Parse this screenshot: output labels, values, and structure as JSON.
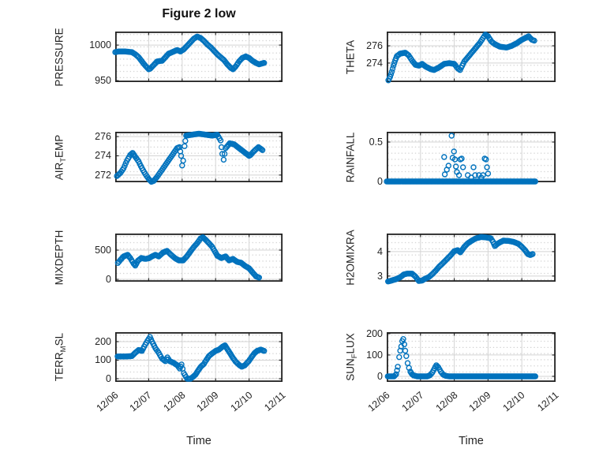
{
  "figure": {
    "title": "Figure 2 low",
    "x_label": "Time",
    "accent_color": "#0072BD",
    "axis_color": "#212121",
    "grid_color": "#d4d4d4",
    "minor_dot_color": "#c2c2c2"
  },
  "x_axis": {
    "tick_labels": [
      "12/06",
      "12/07",
      "12/08",
      "12/09",
      "12/10",
      "12/11"
    ],
    "range_days": [
      0,
      5
    ]
  },
  "chart_data": [
    {
      "name": "PRESSURE",
      "type": "scatter",
      "row": 0,
      "col": 0,
      "ylabel": {
        "pre": "PRESSURE",
        "sub": "",
        "post": ""
      },
      "label": "PRESSURE",
      "yticks": [
        950,
        1000
      ],
      "ylim": [
        948,
        1019
      ],
      "points": [
        [
          0,
          990
        ],
        [
          0.1,
          991
        ],
        [
          0.3,
          991
        ],
        [
          0.5,
          990
        ],
        [
          0.6,
          987
        ],
        [
          0.7,
          983
        ],
        [
          0.8,
          977
        ],
        [
          0.9,
          971
        ],
        [
          1.0,
          966
        ],
        [
          1.05,
          967
        ],
        [
          1.15,
          972
        ],
        [
          1.25,
          977
        ],
        [
          1.4,
          978
        ],
        [
          1.5,
          983
        ],
        [
          1.6,
          988
        ],
        [
          1.75,
          991
        ],
        [
          1.85,
          993
        ],
        [
          1.95,
          991
        ],
        [
          2.05,
          994
        ],
        [
          2.15,
          999
        ],
        [
          2.25,
          1004
        ],
        [
          2.35,
          1009
        ],
        [
          2.45,
          1012
        ],
        [
          2.55,
          1010
        ],
        [
          2.65,
          1006
        ],
        [
          2.75,
          1001
        ],
        [
          2.85,
          997
        ],
        [
          2.95,
          992
        ],
        [
          3.05,
          987
        ],
        [
          3.15,
          983
        ],
        [
          3.25,
          979
        ],
        [
          3.35,
          973
        ],
        [
          3.45,
          968
        ],
        [
          3.52,
          966
        ],
        [
          3.6,
          970
        ],
        [
          3.7,
          977
        ],
        [
          3.8,
          982
        ],
        [
          3.9,
          984
        ],
        [
          4.0,
          982
        ],
        [
          4.1,
          978
        ],
        [
          4.2,
          975
        ],
        [
          4.3,
          973
        ],
        [
          4.45,
          975
        ]
      ]
    },
    {
      "name": "THETA",
      "type": "scatter",
      "row": 0,
      "col": 1,
      "ylabel": {
        "pre": "THETA",
        "sub": "",
        "post": ""
      },
      "label": "THETA",
      "yticks": [
        274,
        276
      ],
      "ylim": [
        271.8,
        277.65
      ],
      "points": [
        [
          0.05,
          272.0
        ],
        [
          0.1,
          272.4
        ],
        [
          0.15,
          273.0
        ],
        [
          0.2,
          273.7
        ],
        [
          0.25,
          274.3
        ],
        [
          0.3,
          274.8
        ],
        [
          0.4,
          275.1
        ],
        [
          0.55,
          275.2
        ],
        [
          0.65,
          274.9
        ],
        [
          0.75,
          274.3
        ],
        [
          0.85,
          273.8
        ],
        [
          0.95,
          273.7
        ],
        [
          1.05,
          273.9
        ],
        [
          1.15,
          273.6
        ],
        [
          1.3,
          273.3
        ],
        [
          1.4,
          273.2
        ],
        [
          1.55,
          273.5
        ],
        [
          1.7,
          273.9
        ],
        [
          1.85,
          274.0
        ],
        [
          2.0,
          273.9
        ],
        [
          2.1,
          273.4
        ],
        [
          2.17,
          273.2
        ],
        [
          2.3,
          274.2
        ],
        [
          2.45,
          274.9
        ],
        [
          2.6,
          275.6
        ],
        [
          2.75,
          276.3
        ],
        [
          2.85,
          276.9
        ],
        [
          2.92,
          277.3
        ],
        [
          3.0,
          277.1
        ],
        [
          3.1,
          276.5
        ],
        [
          3.2,
          276.2
        ],
        [
          3.35,
          275.9
        ],
        [
          3.55,
          275.8
        ],
        [
          3.7,
          276.0
        ],
        [
          3.85,
          276.3
        ],
        [
          4.0,
          276.7
        ],
        [
          4.1,
          276.9
        ],
        [
          4.2,
          277.1
        ],
        [
          4.3,
          276.7
        ],
        [
          4.37,
          276.6
        ]
      ]
    },
    {
      "name": "AIR_TEMP",
      "type": "scatter",
      "row": 1,
      "col": 0,
      "ylabel": {
        "pre": "AIR",
        "sub": "T",
        "post": "EMP"
      },
      "label": "AIR_TEMP",
      "yticks": [
        272,
        274,
        276
      ],
      "ylim": [
        271.25,
        276.5
      ],
      "points": [
        [
          0.05,
          271.9
        ],
        [
          0.15,
          272.2
        ],
        [
          0.25,
          272.7
        ],
        [
          0.35,
          273.5
        ],
        [
          0.45,
          274.1
        ],
        [
          0.52,
          274.3
        ],
        [
          0.6,
          273.9
        ],
        [
          0.7,
          273.4
        ],
        [
          0.8,
          272.7
        ],
        [
          0.9,
          272.1
        ],
        [
          1.0,
          271.6
        ],
        [
          1.08,
          271.3
        ],
        [
          1.15,
          271.4
        ],
        [
          1.25,
          271.8
        ],
        [
          1.35,
          272.3
        ],
        [
          1.45,
          272.8
        ],
        [
          1.55,
          273.3
        ],
        [
          1.65,
          273.8
        ],
        [
          1.75,
          274.3
        ],
        [
          1.85,
          274.8
        ],
        [
          1.92,
          274.9
        ],
        [
          1.97,
          274.0
        ],
        [
          2.0,
          273.0
        ],
        [
          2.03,
          273.5
        ],
        [
          2.07,
          275.0
        ],
        [
          2.12,
          276.1
        ],
        [
          2.3,
          276.2
        ],
        [
          2.5,
          276.3
        ],
        [
          2.7,
          276.2
        ],
        [
          2.9,
          276.1
        ],
        [
          3.05,
          276.2
        ],
        [
          3.15,
          275.6
        ],
        [
          3.2,
          274.2
        ],
        [
          3.24,
          273.6
        ],
        [
          3.3,
          274.8
        ],
        [
          3.42,
          275.3
        ],
        [
          3.55,
          275.2
        ],
        [
          3.7,
          274.8
        ],
        [
          3.85,
          274.4
        ],
        [
          4.0,
          274.0
        ],
        [
          4.05,
          274.1
        ],
        [
          4.15,
          274.5
        ],
        [
          4.28,
          274.9
        ],
        [
          4.4,
          274.6
        ]
      ]
    },
    {
      "name": "RAINFALL",
      "type": "scatter",
      "row": 1,
      "col": 1,
      "ylabel": {
        "pre": "RAINFALL",
        "sub": "",
        "post": ""
      },
      "label": "RAINFALL",
      "yticks": [
        0,
        0.5
      ],
      "ylim": [
        -0.01,
        0.63
      ],
      "points": [
        [
          0,
          0
        ],
        [
          4.4,
          0
        ]
      ],
      "extra_points": [
        [
          1.7,
          0.31
        ],
        [
          1.72,
          0.09
        ],
        [
          1.78,
          0.15
        ],
        [
          1.83,
          0.2
        ],
        [
          1.92,
          0.58
        ],
        [
          1.95,
          0.3
        ],
        [
          1.99,
          0.38
        ],
        [
          2.02,
          0.28
        ],
        [
          2.05,
          0.19
        ],
        [
          2.08,
          0.12
        ],
        [
          2.14,
          0.08
        ],
        [
          2.18,
          0.28
        ],
        [
          2.22,
          0.29
        ],
        [
          2.26,
          0.18
        ],
        [
          2.4,
          0.08
        ],
        [
          2.5,
          0.05
        ],
        [
          2.57,
          0.18
        ],
        [
          2.62,
          0.08
        ],
        [
          2.73,
          0.08
        ],
        [
          2.8,
          0.05
        ],
        [
          2.85,
          0.08
        ],
        [
          2.9,
          0.29
        ],
        [
          2.94,
          0.28
        ],
        [
          2.97,
          0.18
        ],
        [
          3.0,
          0.1
        ]
      ]
    },
    {
      "name": "MIXDEPTH",
      "type": "scatter",
      "row": 2,
      "col": 0,
      "ylabel": {
        "pre": "MIXDEPTH",
        "sub": "",
        "post": ""
      },
      "label": "MIXDEPTH",
      "yticks": [
        0,
        500
      ],
      "ylim": [
        -40,
        784
      ],
      "points": [
        [
          0.08,
          280
        ],
        [
          0.15,
          330
        ],
        [
          0.25,
          392
        ],
        [
          0.37,
          420
        ],
        [
          0.45,
          365
        ],
        [
          0.55,
          270
        ],
        [
          0.6,
          235
        ],
        [
          0.68,
          320
        ],
        [
          0.78,
          365
        ],
        [
          0.9,
          350
        ],
        [
          1.0,
          360
        ],
        [
          1.1,
          392
        ],
        [
          1.2,
          420
        ],
        [
          1.3,
          392
        ],
        [
          1.43,
          460
        ],
        [
          1.55,
          487
        ],
        [
          1.65,
          430
        ],
        [
          1.78,
          365
        ],
        [
          1.9,
          325
        ],
        [
          2.03,
          325
        ],
        [
          2.14,
          392
        ],
        [
          2.26,
          487
        ],
        [
          2.35,
          555
        ],
        [
          2.45,
          620
        ],
        [
          2.55,
          700
        ],
        [
          2.62,
          720
        ],
        [
          2.7,
          680
        ],
        [
          2.8,
          620
        ],
        [
          2.9,
          555
        ],
        [
          2.97,
          487
        ],
        [
          3.05,
          405
        ],
        [
          3.17,
          365
        ],
        [
          3.3,
          392
        ],
        [
          3.4,
          325
        ],
        [
          3.52,
          350
        ],
        [
          3.64,
          300
        ],
        [
          3.76,
          285
        ],
        [
          3.88,
          230
        ],
        [
          4.0,
          190
        ],
        [
          4.1,
          122
        ],
        [
          4.2,
          55
        ],
        [
          4.3,
          30
        ]
      ]
    },
    {
      "name": "H2OMIXRA",
      "type": "scatter",
      "row": 2,
      "col": 1,
      "ylabel": {
        "pre": "H2OMIXRA",
        "sub": "",
        "post": ""
      },
      "label": "H2OMIXRA",
      "yticks": [
        3,
        4
      ],
      "ylim": [
        2.77,
        4.74
      ],
      "points": [
        [
          0.04,
          2.78
        ],
        [
          0.15,
          2.82
        ],
        [
          0.25,
          2.86
        ],
        [
          0.4,
          2.95
        ],
        [
          0.5,
          3.06
        ],
        [
          0.6,
          3.1
        ],
        [
          0.75,
          3.1
        ],
        [
          0.85,
          2.98
        ],
        [
          0.95,
          2.8
        ],
        [
          1.05,
          2.82
        ],
        [
          1.15,
          2.9
        ],
        [
          1.25,
          2.96
        ],
        [
          1.35,
          3.08
        ],
        [
          1.45,
          3.22
        ],
        [
          1.55,
          3.38
        ],
        [
          1.68,
          3.55
        ],
        [
          1.8,
          3.72
        ],
        [
          1.9,
          3.86
        ],
        [
          2.0,
          4.02
        ],
        [
          2.1,
          4.06
        ],
        [
          2.18,
          3.97
        ],
        [
          2.3,
          4.2
        ],
        [
          2.4,
          4.34
        ],
        [
          2.52,
          4.45
        ],
        [
          2.65,
          4.55
        ],
        [
          2.8,
          4.6
        ],
        [
          2.95,
          4.58
        ],
        [
          3.08,
          4.55
        ],
        [
          3.15,
          4.4
        ],
        [
          3.2,
          4.23
        ],
        [
          3.3,
          4.34
        ],
        [
          3.45,
          4.45
        ],
        [
          3.6,
          4.44
        ],
        [
          3.75,
          4.4
        ],
        [
          3.9,
          4.32
        ],
        [
          4.0,
          4.2
        ],
        [
          4.1,
          4.05
        ],
        [
          4.18,
          3.9
        ],
        [
          4.25,
          3.86
        ],
        [
          4.32,
          3.9
        ]
      ]
    },
    {
      "name": "TERR_MSL",
      "type": "scatter",
      "row": 3,
      "col": 0,
      "ylabel": {
        "pre": "TERR",
        "sub": "M",
        "post": "SL"
      },
      "label": "TERR_MSL",
      "yticks": [
        0,
        100,
        200
      ],
      "ylim": [
        -17,
        251
      ],
      "points": [
        [
          0.07,
          120
        ],
        [
          0.3,
          120
        ],
        [
          0.5,
          122
        ],
        [
          0.6,
          140
        ],
        [
          0.7,
          155
        ],
        [
          0.8,
          150
        ],
        [
          0.9,
          185
        ],
        [
          1.0,
          215
        ],
        [
          1.04,
          225
        ],
        [
          1.1,
          200
        ],
        [
          1.2,
          165
        ],
        [
          1.3,
          140
        ],
        [
          1.4,
          108
        ],
        [
          1.5,
          95
        ],
        [
          1.56,
          115
        ],
        [
          1.63,
          95
        ],
        [
          1.75,
          85
        ],
        [
          1.86,
          72
        ],
        [
          1.93,
          55
        ],
        [
          1.98,
          77
        ],
        [
          2.05,
          30
        ],
        [
          2.15,
          0
        ],
        [
          2.25,
          0
        ],
        [
          2.32,
          10
        ],
        [
          2.4,
          22
        ],
        [
          2.48,
          45
        ],
        [
          2.56,
          65
        ],
        [
          2.65,
          80
        ],
        [
          2.72,
          100
        ],
        [
          2.8,
          122
        ],
        [
          2.9,
          137
        ],
        [
          3.0,
          150
        ],
        [
          3.1,
          157
        ],
        [
          3.2,
          172
        ],
        [
          3.28,
          180
        ],
        [
          3.36,
          157
        ],
        [
          3.44,
          135
        ],
        [
          3.52,
          112
        ],
        [
          3.6,
          92
        ],
        [
          3.7,
          75
        ],
        [
          3.78,
          65
        ],
        [
          3.87,
          72
        ],
        [
          3.99,
          95
        ],
        [
          4.08,
          118
        ],
        [
          4.16,
          138
        ],
        [
          4.24,
          150
        ],
        [
          4.35,
          157
        ],
        [
          4.45,
          150
        ]
      ]
    },
    {
      "name": "SUN_FLUX",
      "type": "scatter",
      "row": 3,
      "col": 1,
      "ylabel": {
        "pre": "SUN",
        "sub": "F",
        "post": "LUX"
      },
      "label": "SUN_FLUX",
      "yticks": [
        0,
        100,
        200
      ],
      "ylim": [
        -26,
        207
      ],
      "points": [
        [
          0.03,
          0
        ],
        [
          0.22,
          0
        ],
        [
          0.28,
          10
        ],
        [
          0.33,
          45
        ],
        [
          0.37,
          90
        ],
        [
          0.4,
          120
        ],
        [
          0.43,
          140
        ],
        [
          0.46,
          165
        ],
        [
          0.49,
          175
        ],
        [
          0.52,
          150
        ],
        [
          0.55,
          120
        ],
        [
          0.58,
          95
        ],
        [
          0.62,
          62
        ],
        [
          0.66,
          40
        ],
        [
          0.7,
          22
        ],
        [
          0.75,
          10
        ],
        [
          0.8,
          4
        ],
        [
          0.9,
          0
        ],
        [
          1.2,
          0
        ],
        [
          1.28,
          5
        ],
        [
          1.35,
          18
        ],
        [
          1.42,
          38
        ],
        [
          1.47,
          52
        ],
        [
          1.53,
          42
        ],
        [
          1.6,
          22
        ],
        [
          1.67,
          8
        ],
        [
          1.75,
          2
        ],
        [
          1.85,
          0
        ],
        [
          4.4,
          0
        ]
      ]
    }
  ]
}
